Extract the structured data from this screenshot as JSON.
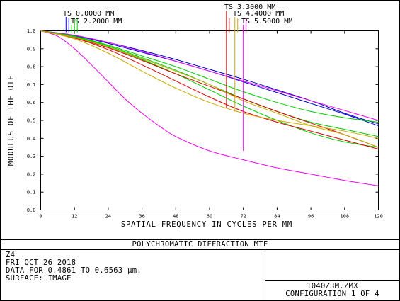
{
  "chart_data": {
    "type": "line",
    "xlabel": "SPATIAL FREQUENCY IN CYCLES PER MM",
    "ylabel": "MODULUS OF THE OTF",
    "xlim": [
      0,
      120
    ],
    "ylim": [
      0,
      1.0
    ],
    "xticks": [
      0,
      12,
      24,
      36,
      48,
      60,
      72,
      84,
      96,
      108,
      120
    ],
    "xtick_labels": [
      "0",
      "12",
      "24",
      "36",
      "48",
      "60",
      "72",
      "84",
      "96",
      "108",
      "120"
    ],
    "yticks": [
      0,
      0.1,
      0.2,
      0.3,
      0.4,
      0.5,
      0.6,
      0.7,
      0.8,
      0.9,
      1.0
    ],
    "ytick_labels": [
      "0.0",
      "0.1",
      "0.2",
      "0.3",
      "0.4",
      "0.5",
      "0.6",
      "0.7",
      "0.8",
      "0.9",
      "1.0"
    ],
    "grid": false,
    "legend": [
      {
        "label": "TS 0.0000 MM",
        "color": "#0000ff",
        "marker_x": 9
      },
      {
        "label": "TS 2.2000 MM",
        "color": "#00cc00",
        "marker_x": 11
      },
      {
        "label": "TS 3.3000 MM",
        "color": "#dd0000",
        "marker_x": 66
      },
      {
        "label": "TS 4.4000 MM",
        "color": "#ccaa00",
        "marker_x": 69
      },
      {
        "label": "TS 5.5000 MM",
        "color": "#ee00ee",
        "marker_x": 72
      }
    ],
    "series": [
      {
        "color": "#0000cc",
        "x": [
          0,
          12,
          24,
          36,
          48,
          60,
          72,
          84,
          96,
          108,
          120
        ],
        "y": [
          1.0,
          0.975,
          0.935,
          0.89,
          0.84,
          0.785,
          0.73,
          0.67,
          0.61,
          0.54,
          0.48
        ]
      },
      {
        "color": "#0000cc",
        "x": [
          0,
          12,
          24,
          36,
          48,
          60,
          72,
          84,
          96,
          108,
          120
        ],
        "y": [
          1.0,
          0.973,
          0.93,
          0.88,
          0.83,
          0.775,
          0.715,
          0.655,
          0.595,
          0.535,
          0.47
        ]
      },
      {
        "color": "#ee00ee",
        "x": [
          0,
          12,
          24,
          36,
          48,
          60,
          72,
          84,
          96,
          108,
          120
        ],
        "y": [
          1.0,
          0.975,
          0.935,
          0.885,
          0.83,
          0.775,
          0.72,
          0.665,
          0.61,
          0.555,
          0.5
        ]
      },
      {
        "color": "#ee00ee",
        "x": [
          0,
          6,
          12,
          18,
          24,
          30,
          36,
          42,
          48,
          60,
          72,
          84,
          96,
          108,
          120
        ],
        "y": [
          1.0,
          0.97,
          0.9,
          0.81,
          0.715,
          0.62,
          0.54,
          0.47,
          0.41,
          0.33,
          0.28,
          0.235,
          0.2,
          0.165,
          0.135
        ]
      },
      {
        "color": "#00cc00",
        "x": [
          0,
          12,
          24,
          36,
          48,
          60,
          72,
          84,
          96,
          108,
          120
        ],
        "y": [
          1.0,
          0.97,
          0.92,
          0.86,
          0.8,
          0.73,
          0.66,
          0.6,
          0.55,
          0.515,
          0.49
        ]
      },
      {
        "color": "#00cc00",
        "x": [
          0,
          12,
          24,
          36,
          48,
          60,
          72,
          84,
          96,
          108,
          120
        ],
        "y": [
          1.0,
          0.968,
          0.915,
          0.85,
          0.78,
          0.7,
          0.62,
          0.55,
          0.49,
          0.45,
          0.41
        ]
      },
      {
        "color": "#00cc00",
        "x": [
          0,
          12,
          24,
          36,
          48,
          60,
          72,
          84,
          96,
          108,
          120
        ],
        "y": [
          1.0,
          0.966,
          0.91,
          0.84,
          0.76,
          0.67,
          0.58,
          0.5,
          0.43,
          0.38,
          0.35
        ]
      },
      {
        "color": "#dd0000",
        "x": [
          0,
          12,
          24,
          36,
          48,
          60,
          72,
          84,
          96,
          108,
          120
        ],
        "y": [
          1.0,
          0.96,
          0.895,
          0.81,
          0.72,
          0.63,
          0.55,
          0.49,
          0.44,
          0.39,
          0.34
        ]
      },
      {
        "color": "#dd0000",
        "x": [
          0,
          12,
          24,
          36,
          48,
          60,
          72,
          84,
          96,
          108,
          120
        ],
        "y": [
          1.0,
          0.962,
          0.905,
          0.835,
          0.76,
          0.69,
          0.62,
          0.55,
          0.485,
          0.42,
          0.35
        ]
      },
      {
        "color": "#ccaa00",
        "x": [
          0,
          12,
          24,
          36,
          48,
          60,
          72,
          84,
          96,
          108,
          120
        ],
        "y": [
          1.0,
          0.955,
          0.875,
          0.775,
          0.68,
          0.6,
          0.54,
          0.5,
          0.47,
          0.44,
          0.4
        ]
      },
      {
        "color": "#ccaa00",
        "x": [
          0,
          12,
          24,
          36,
          48,
          60,
          72,
          84,
          96,
          108,
          120
        ],
        "y": [
          1.0,
          0.963,
          0.91,
          0.845,
          0.775,
          0.7,
          0.61,
          0.54,
          0.47,
          0.42,
          0.35
        ]
      }
    ]
  },
  "title_block": {
    "plot_title": "POLYCHROMATIC DIFFRACTION MTF",
    "lens": "Z4",
    "date": "FRI OCT 26 2018",
    "data_range": "DATA FOR 0.4861 TO 0.6563 μm.",
    "surface": "SURFACE: IMAGE",
    "file": "1040Z3M.ZMX",
    "configuration": "CONFIGURATION 1 OF 4"
  }
}
